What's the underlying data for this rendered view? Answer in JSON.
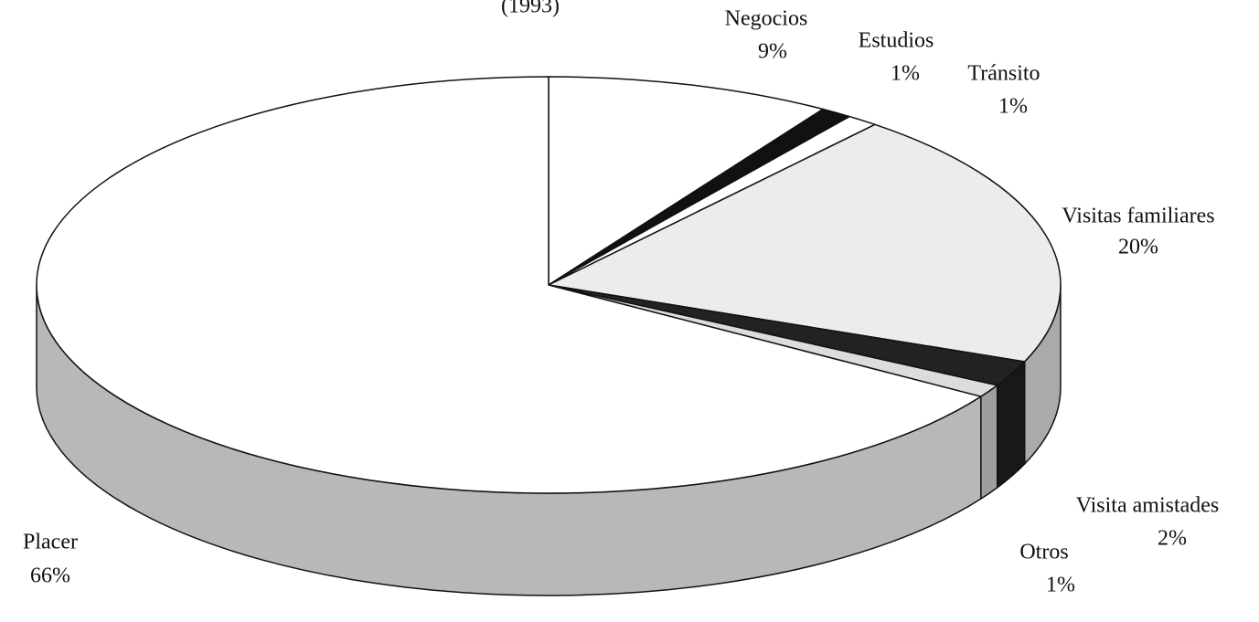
{
  "chart_data": {
    "type": "pie3d",
    "title": "(1993)",
    "categories": [
      "Negocios",
      "Estudios",
      "Tránsito",
      "Visitas familiares",
      "Visita amistades",
      "Otros",
      "Placer"
    ],
    "values": [
      9,
      1,
      1,
      20,
      2,
      1,
      66
    ],
    "value_labels": [
      "9%",
      "1%",
      "1%",
      "20%",
      "2%",
      "1%",
      "66%"
    ],
    "colors": [
      "#ffffff",
      "#111111",
      "#ffffff",
      "#ececec",
      "#222222",
      "#dcdcdc",
      "#ffffff"
    ]
  }
}
